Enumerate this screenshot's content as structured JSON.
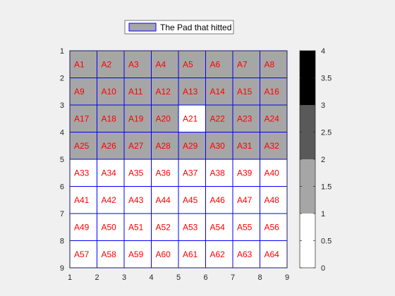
{
  "colors": {
    "figure_bg": "#f0f0f0",
    "axes_bg": "#ffffff",
    "grid_line": "#0000ff",
    "label_text": "#ff0000",
    "axis_color": "#262626",
    "legend_patch": "#a6a6a6",
    "legend_border": "#0000ff"
  },
  "chart_data": {
    "type": "heatmap",
    "title": "",
    "xlabel": "",
    "ylabel": "",
    "xlim": [
      1,
      9
    ],
    "ylim": [
      1,
      9
    ],
    "y_direction": "reversed",
    "xticks": [
      1,
      2,
      3,
      4,
      5,
      6,
      7,
      8,
      9
    ],
    "yticks": [
      1,
      2,
      3,
      4,
      5,
      6,
      7,
      8,
      9
    ],
    "grid_cols": 8,
    "grid_rows": 8,
    "cell_labels": [
      [
        "A1",
        "A2",
        "A3",
        "A4",
        "A5",
        "A6",
        "A7",
        "A8"
      ],
      [
        "A9",
        "A10",
        "A11",
        "A12",
        "A13",
        "A14",
        "A15",
        "A16"
      ],
      [
        "A17",
        "A18",
        "A19",
        "A20",
        "A21",
        "A22",
        "A23",
        "A24"
      ],
      [
        "A25",
        "A26",
        "A27",
        "A28",
        "A29",
        "A30",
        "A31",
        "A32"
      ],
      [
        "A33",
        "A34",
        "A35",
        "A36",
        "A37",
        "A38",
        "A39",
        "A40"
      ],
      [
        "A41",
        "A42",
        "A43",
        "A44",
        "A45",
        "A46",
        "A47",
        "A48"
      ],
      [
        "A49",
        "A50",
        "A51",
        "A52",
        "A53",
        "A54",
        "A55",
        "A56"
      ],
      [
        "A57",
        "A58",
        "A59",
        "A60",
        "A61",
        "A62",
        "A63",
        "A64"
      ]
    ],
    "values": [
      [
        1,
        1,
        1,
        1,
        1,
        1,
        1,
        1
      ],
      [
        1,
        1,
        1,
        1,
        1,
        1,
        1,
        1
      ],
      [
        1,
        1,
        1,
        1,
        0,
        1,
        1,
        1
      ],
      [
        1,
        1,
        1,
        1,
        1,
        1,
        1,
        1
      ],
      [
        0,
        0,
        0,
        0,
        0,
        0,
        0,
        0
      ],
      [
        0,
        0,
        0,
        0,
        0,
        0,
        0,
        0
      ],
      [
        0,
        0,
        0,
        0,
        0,
        0,
        0,
        0
      ],
      [
        0,
        0,
        0,
        0,
        0,
        0,
        0,
        0
      ]
    ],
    "legend": {
      "label": "The Pad that hitted",
      "location": "top"
    },
    "colorbar": {
      "limits": [
        0,
        4
      ],
      "ticks": [
        "0",
        "0.5",
        "1",
        "1.5",
        "2",
        "2.5",
        "3",
        "3.5",
        "4"
      ],
      "bands": [
        {
          "from": 0,
          "to": 1,
          "color": "#ffffff"
        },
        {
          "from": 1,
          "to": 2,
          "color": "#a6a6a6"
        },
        {
          "from": 2,
          "to": 3,
          "color": "#595959"
        },
        {
          "from": 3,
          "to": 4,
          "color": "#000000"
        }
      ]
    }
  }
}
